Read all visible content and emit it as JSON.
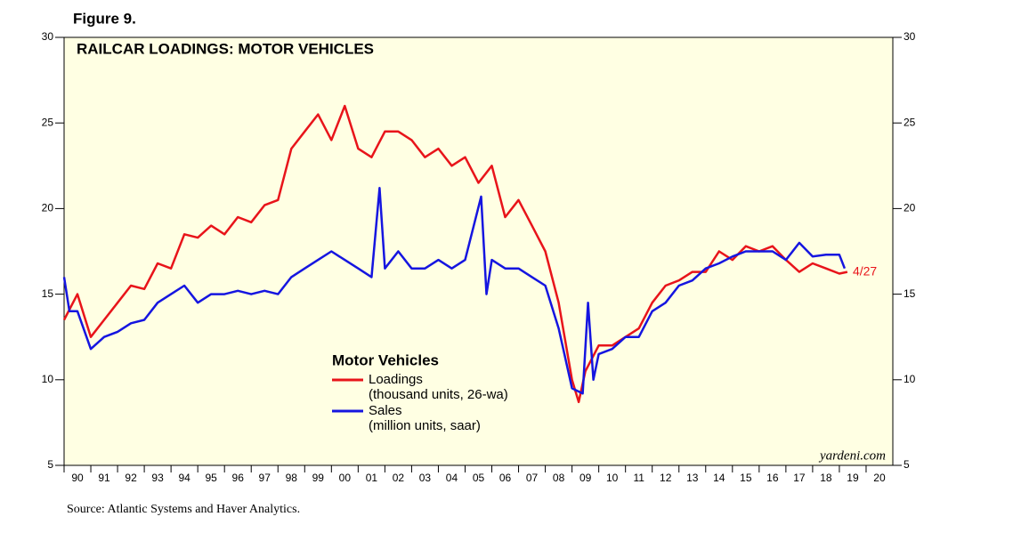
{
  "figure_label": "Figure 9.",
  "source": "Source: Atlantic Systems and Haver Analytics.",
  "credit": "yardeni.com",
  "chart_data": {
    "type": "line",
    "title": "RAILCAR LOADINGS: MOTOR VEHICLES",
    "legend_title": "Motor Vehicles",
    "background": "#ffffe3",
    "xlim": [
      1990,
      2021
    ],
    "xticks": [
      {
        "value": 1990,
        "label": "90"
      },
      {
        "value": 1991,
        "label": "91"
      },
      {
        "value": 1992,
        "label": "92"
      },
      {
        "value": 1993,
        "label": "93"
      },
      {
        "value": 1994,
        "label": "94"
      },
      {
        "value": 1995,
        "label": "95"
      },
      {
        "value": 1996,
        "label": "96"
      },
      {
        "value": 1997,
        "label": "97"
      },
      {
        "value": 1998,
        "label": "98"
      },
      {
        "value": 1999,
        "label": "99"
      },
      {
        "value": 2000,
        "label": "00"
      },
      {
        "value": 2001,
        "label": "01"
      },
      {
        "value": 2002,
        "label": "02"
      },
      {
        "value": 2003,
        "label": "03"
      },
      {
        "value": 2004,
        "label": "04"
      },
      {
        "value": 2005,
        "label": "05"
      },
      {
        "value": 2006,
        "label": "06"
      },
      {
        "value": 2007,
        "label": "07"
      },
      {
        "value": 2008,
        "label": "08"
      },
      {
        "value": 2009,
        "label": "09"
      },
      {
        "value": 2010,
        "label": "10"
      },
      {
        "value": 2011,
        "label": "11"
      },
      {
        "value": 2012,
        "label": "12"
      },
      {
        "value": 2013,
        "label": "13"
      },
      {
        "value": 2014,
        "label": "14"
      },
      {
        "value": 2015,
        "label": "15"
      },
      {
        "value": 2016,
        "label": "16"
      },
      {
        "value": 2017,
        "label": "17"
      },
      {
        "value": 2018,
        "label": "18"
      },
      {
        "value": 2019,
        "label": "19"
      },
      {
        "value": 2020,
        "label": "20"
      }
    ],
    "ylim": [
      5,
      30
    ],
    "yticks": [
      5,
      10,
      15,
      20,
      25,
      30
    ],
    "series": [
      {
        "name": "Loadings",
        "note": "(thousand units, 26-wa)",
        "color": "#e8141a",
        "end_label": "4/27",
        "x": [
          1990.0,
          1990.5,
          1991.0,
          1991.5,
          1992.0,
          1992.5,
          1993.0,
          1993.5,
          1994.0,
          1994.5,
          1995.0,
          1995.5,
          1996.0,
          1996.5,
          1997.0,
          1997.5,
          1998.0,
          1998.5,
          1999.0,
          1999.5,
          2000.0,
          2000.5,
          2001.0,
          2001.5,
          2002.0,
          2002.5,
          2003.0,
          2003.5,
          2004.0,
          2004.5,
          2005.0,
          2005.5,
          2006.0,
          2006.5,
          2007.0,
          2007.5,
          2008.0,
          2008.5,
          2009.0,
          2009.25,
          2009.5,
          2010.0,
          2010.5,
          2011.0,
          2011.5,
          2012.0,
          2012.5,
          2013.0,
          2013.5,
          2014.0,
          2014.5,
          2015.0,
          2015.5,
          2016.0,
          2016.5,
          2017.0,
          2017.5,
          2018.0,
          2018.5,
          2019.0,
          2019.3
        ],
        "values": [
          13.5,
          15.0,
          12.5,
          13.5,
          14.5,
          15.5,
          15.3,
          16.8,
          16.5,
          18.5,
          18.3,
          19.0,
          18.5,
          19.5,
          19.2,
          20.2,
          20.5,
          23.5,
          24.5,
          25.5,
          24.0,
          26.0,
          23.5,
          23.0,
          24.5,
          24.5,
          24.0,
          23.0,
          23.5,
          22.5,
          23.0,
          21.5,
          22.5,
          19.5,
          20.5,
          19.0,
          17.5,
          14.5,
          10.0,
          8.7,
          10.5,
          12.0,
          12.0,
          12.5,
          13.0,
          14.5,
          15.5,
          15.8,
          16.3,
          16.3,
          17.5,
          17.0,
          17.8,
          17.5,
          17.8,
          17.0,
          16.3,
          16.8,
          16.5,
          16.2,
          16.3
        ]
      },
      {
        "name": "Sales",
        "note": "(million units, saar)",
        "color": "#1515e0",
        "x": [
          1990.0,
          1990.2,
          1990.5,
          1991.0,
          1991.5,
          1992.0,
          1992.5,
          1993.0,
          1993.5,
          1994.0,
          1994.5,
          1995.0,
          1995.5,
          1996.0,
          1996.5,
          1997.0,
          1997.5,
          1998.0,
          1998.5,
          1999.0,
          1999.5,
          2000.0,
          2000.5,
          2001.0,
          2001.5,
          2001.8,
          2002.0,
          2002.5,
          2003.0,
          2003.5,
          2004.0,
          2004.5,
          2005.0,
          2005.6,
          2005.8,
          2006.0,
          2006.5,
          2007.0,
          2007.5,
          2008.0,
          2008.5,
          2009.0,
          2009.4,
          2009.6,
          2009.8,
          2010.0,
          2010.5,
          2011.0,
          2011.5,
          2012.0,
          2012.5,
          2013.0,
          2013.5,
          2014.0,
          2014.5,
          2015.0,
          2015.5,
          2016.0,
          2016.5,
          2017.0,
          2017.5,
          2018.0,
          2018.5,
          2019.0,
          2019.2
        ],
        "values": [
          16.0,
          14.0,
          14.0,
          11.8,
          12.5,
          12.8,
          13.3,
          13.5,
          14.5,
          15.0,
          15.5,
          14.5,
          15.0,
          15.0,
          15.2,
          15.0,
          15.2,
          15.0,
          16.0,
          16.5,
          17.0,
          17.5,
          17.0,
          16.5,
          16.0,
          21.2,
          16.5,
          17.5,
          16.5,
          16.5,
          17.0,
          16.5,
          17.0,
          20.7,
          15.0,
          17.0,
          16.5,
          16.5,
          16.0,
          15.5,
          13.0,
          9.5,
          9.2,
          14.5,
          10.0,
          11.5,
          11.8,
          12.5,
          12.5,
          14.0,
          14.5,
          15.5,
          15.8,
          16.5,
          16.8,
          17.2,
          17.5,
          17.5,
          17.5,
          17.0,
          18.0,
          17.2,
          17.3,
          17.3,
          16.5
        ]
      }
    ]
  }
}
